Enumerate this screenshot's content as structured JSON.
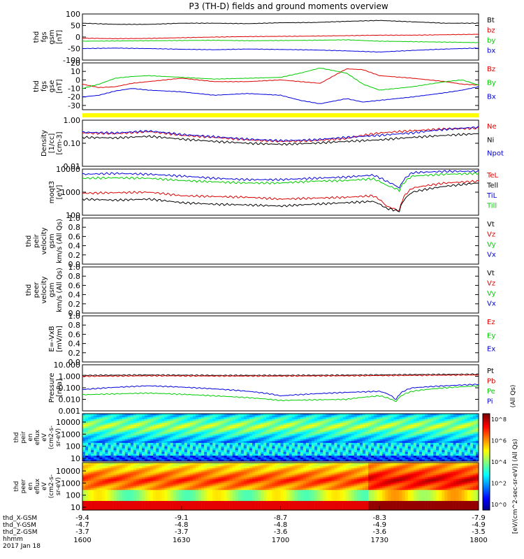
{
  "chart_data": {
    "type": "line",
    "title": "P3 (TH-D) fields and ground moments overview",
    "date_label": "2017 Jan 18",
    "x_time": {
      "label": "hhmm",
      "ticks": [
        "1600",
        "1630",
        "1700",
        "1730",
        "1800"
      ],
      "range": [
        0,
        120
      ]
    },
    "x_gsm": [
      {
        "label": "thd_X-GSM",
        "values": [
          "-9.4",
          "-9.1",
          "-8.7",
          "-8.3",
          "-7.9"
        ]
      },
      {
        "label": "thd_Y-GSM",
        "values": [
          "-4.7",
          "-4.8",
          "-4.8",
          "-4.9",
          "-4.9"
        ]
      },
      {
        "label": "thd_Z-GSM",
        "values": [
          "-3.7",
          "-3.7",
          "-3.6",
          "-3.6",
          "-3.5"
        ]
      }
    ],
    "panels": [
      {
        "id": "fgs_gsm",
        "ylabel": [
          "thd",
          "fgs",
          "gsm",
          "[nT]"
        ],
        "scale": "linear",
        "ylim": [
          -100,
          100
        ],
        "ticks": [
          "100",
          "50",
          "0",
          "-50",
          "-100"
        ],
        "series": [
          {
            "name": "Bt",
            "color": "#000000",
            "x": [
              0,
              10,
              20,
              30,
              40,
              50,
              60,
              70,
              80,
              90,
              100,
              110,
              120
            ],
            "values": [
              60,
              55,
              55,
              60,
              60,
              58,
              62,
              63,
              68,
              72,
              66,
              60,
              60
            ]
          },
          {
            "name": "bz",
            "color": "#dd0000",
            "x": [
              0,
              10,
              20,
              30,
              40,
              50,
              60,
              70,
              80,
              90,
              100,
              110,
              120
            ],
            "values": [
              -5,
              -7,
              -6,
              -3,
              0,
              2,
              3,
              4,
              6,
              8,
              8,
              10,
              12
            ]
          },
          {
            "name": "by",
            "color": "#00cc00",
            "x": [
              0,
              10,
              20,
              30,
              40,
              50,
              60,
              70,
              80,
              90,
              100,
              110,
              120
            ],
            "values": [
              -18,
              -17,
              -16,
              -15,
              -14,
              -16,
              -15,
              -14,
              -12,
              -18,
              -20,
              -22,
              -24
            ]
          },
          {
            "name": "bx",
            "color": "#0000dd",
            "x": [
              0,
              10,
              20,
              30,
              40,
              50,
              60,
              70,
              80,
              90,
              100,
              110,
              120
            ],
            "values": [
              -50,
              -48,
              -50,
              -53,
              -55,
              -52,
              -54,
              -56,
              -60,
              -65,
              -58,
              -52,
              -48
            ]
          }
        ]
      },
      {
        "id": "fgs_gse",
        "ylabel": [
          "thd",
          "fgs",
          "gse",
          "[nT]"
        ],
        "scale": "linear",
        "ylim": [
          -35,
          20
        ],
        "ticks": [
          "20",
          "10",
          "0",
          "-10",
          "-20",
          "-30"
        ],
        "series": [
          {
            "name": "Bz",
            "color": "#dd0000",
            "x": [
              0,
              5,
              10,
              15,
              20,
              30,
              40,
              50,
              60,
              66,
              72,
              80,
              85,
              90,
              100,
              110,
              115,
              120
            ],
            "values": [
              -5,
              -9,
              -8,
              -4,
              -2,
              2,
              -2,
              -2,
              0,
              -2,
              -4,
              13,
              12,
              5,
              2,
              -2,
              -5,
              -6
            ]
          },
          {
            "name": "By",
            "color": "#00cc00",
            "x": [
              0,
              5,
              10,
              15,
              20,
              30,
              40,
              50,
              60,
              66,
              72,
              80,
              85,
              90,
              100,
              110,
              115,
              120
            ],
            "values": [
              -10,
              -5,
              2,
              4,
              5,
              3,
              1,
              2,
              3,
              8,
              14,
              8,
              -5,
              -12,
              -8,
              -2,
              0,
              -6
            ]
          },
          {
            "name": "Bx",
            "color": "#0000dd",
            "x": [
              0,
              5,
              10,
              15,
              20,
              30,
              40,
              50,
              60,
              66,
              72,
              80,
              85,
              90,
              100,
              110,
              115,
              120
            ],
            "values": [
              -20,
              -18,
              -13,
              -10,
              -12,
              -14,
              -18,
              -16,
              -18,
              -24,
              -28,
              -22,
              -26,
              -24,
              -20,
              -15,
              -12,
              -8
            ]
          }
        ]
      },
      {
        "id": "density",
        "ylabel": [
          "Density",
          "[1/cc]",
          "[cm-3]"
        ],
        "scale": "log",
        "ylim": [
          0.01,
          1.0
        ],
        "ticks": [
          "1.00",
          "0.10",
          "0.01"
        ],
        "series": [
          {
            "name": "Ne",
            "color": "#dd0000",
            "x": [
              0,
              10,
              20,
              30,
              40,
              50,
              60,
              70,
              80,
              90,
              100,
              110,
              120
            ],
            "values": [
              0.28,
              0.26,
              0.32,
              0.22,
              0.18,
              0.14,
              0.12,
              0.13,
              0.16,
              0.28,
              0.35,
              0.42,
              0.45
            ]
          },
          {
            "name": "Ni",
            "color": "#000000",
            "x": [
              0,
              10,
              20,
              30,
              40,
              50,
              60,
              70,
              80,
              90,
              100,
              110,
              120
            ],
            "values": [
              0.18,
              0.17,
              0.2,
              0.15,
              0.12,
              0.1,
              0.09,
              0.1,
              0.12,
              0.14,
              0.18,
              0.22,
              0.26
            ]
          },
          {
            "name": "Npot",
            "color": "#0000dd",
            "x": [
              0,
              10,
              20,
              30,
              40,
              50,
              60,
              70,
              80,
              90,
              100,
              110,
              120
            ],
            "values": [
              0.3,
              0.28,
              0.34,
              0.24,
              0.19,
              0.15,
              0.13,
              0.14,
              0.18,
              0.22,
              0.28,
              0.4,
              0.5
            ]
          }
        ]
      },
      {
        "id": "moments",
        "ylabel": [
          "moqt3",
          "[eV]"
        ],
        "scale": "log",
        "ylim": [
          100,
          10000
        ],
        "ticks": [
          "10000",
          "1000",
          "100"
        ],
        "series": [
          {
            "name": "TeL",
            "color": "#dd0000",
            "x": [
              0,
              10,
              20,
              30,
              40,
              50,
              60,
              70,
              80,
              88,
              92,
              96,
              100,
              110,
              120
            ],
            "values": [
              900,
              950,
              1000,
              700,
              650,
              600,
              500,
              550,
              600,
              700,
              250,
              150,
              1500,
              2500,
              3000
            ]
          },
          {
            "name": "Tell",
            "color": "#000000",
            "x": [
              0,
              10,
              20,
              30,
              40,
              50,
              60,
              70,
              80,
              88,
              92,
              96,
              100,
              110,
              120
            ],
            "values": [
              500,
              450,
              500,
              350,
              300,
              280,
              250,
              300,
              350,
              400,
              200,
              150,
              1000,
              1800,
              2500
            ]
          },
          {
            "name": "TiL",
            "color": "#0000dd",
            "x": [
              0,
              10,
              20,
              30,
              40,
              50,
              60,
              70,
              80,
              88,
              92,
              96,
              100,
              110,
              120
            ],
            "values": [
              6000,
              6500,
              6000,
              5000,
              4000,
              3500,
              3500,
              4000,
              4500,
              5500,
              3000,
              1500,
              7000,
              8000,
              8000
            ]
          },
          {
            "name": "Till",
            "color": "#00cc00",
            "x": [
              0,
              10,
              20,
              30,
              40,
              50,
              60,
              70,
              80,
              88,
              92,
              96,
              100,
              110,
              120
            ],
            "values": [
              4000,
              4200,
              4000,
              3200,
              2800,
              2500,
              2500,
              3000,
              3200,
              3800,
              2000,
              1200,
              5000,
              6000,
              6500
            ]
          }
        ]
      },
      {
        "id": "peir_velocity",
        "ylabel": [
          "thd",
          "peir",
          "velocity",
          "gsm",
          "km/s (All Qs)"
        ],
        "scale": "linear",
        "ylim": [
          0,
          1.0
        ],
        "ticks": [
          "1.0",
          "0.8",
          "0.6",
          "0.4",
          "0.2",
          "0.0"
        ],
        "series": [
          {
            "name": "Vt",
            "color": "#000000",
            "x": [],
            "values": []
          },
          {
            "name": "Vz",
            "color": "#dd0000",
            "x": [],
            "values": []
          },
          {
            "name": "Vy",
            "color": "#00cc00",
            "x": [],
            "values": []
          },
          {
            "name": "Vx",
            "color": "#0000dd",
            "x": [],
            "values": []
          }
        ]
      },
      {
        "id": "peer_velocity",
        "ylabel": [
          "thd",
          "peer",
          "velocity",
          "gsm",
          "km/s (All Qs)"
        ],
        "scale": "linear",
        "ylim": [
          0,
          1.0
        ],
        "ticks": [
          "1.0",
          "0.8",
          "0.6",
          "0.4",
          "0.2",
          "0.0"
        ],
        "series": [
          {
            "name": "Vt",
            "color": "#000000",
            "x": [],
            "values": []
          },
          {
            "name": "Vz",
            "color": "#dd0000",
            "x": [],
            "values": []
          },
          {
            "name": "Vy",
            "color": "#00cc00",
            "x": [],
            "values": []
          },
          {
            "name": "Vx",
            "color": "#0000dd",
            "x": [],
            "values": []
          }
        ]
      },
      {
        "id": "efield",
        "ylabel": [
          "E=-VxB",
          "[mV/m]"
        ],
        "scale": "linear",
        "ylim": [
          0,
          1.0
        ],
        "ticks": [
          "1.0",
          "0.8",
          "0.6",
          "0.4",
          "0.2",
          "0.0"
        ],
        "series": [
          {
            "name": "Ez",
            "color": "#dd0000",
            "x": [],
            "values": []
          },
          {
            "name": "Ey",
            "color": "#00cc00",
            "x": [],
            "values": []
          },
          {
            "name": "Ex",
            "color": "#0000dd",
            "x": [],
            "values": []
          }
        ]
      },
      {
        "id": "pressure",
        "ylabel": [
          "Pressure",
          "[nPa]"
        ],
        "scale": "log",
        "ylim": [
          0.001,
          10
        ],
        "ticks": [
          "10.000",
          "1.000",
          "0.100",
          "0.010",
          "0.001"
        ],
        "right_label": "(All Qs)",
        "series": [
          {
            "name": "Pt",
            "color": "#000000",
            "x": [
              0,
              20,
              40,
              60,
              80,
              100,
              120
            ],
            "values": [
              1.2,
              1.3,
              1.2,
              1.2,
              1.25,
              1.4,
              1.5
            ]
          },
          {
            "name": "Pb",
            "color": "#dd0000",
            "x": [
              0,
              20,
              40,
              60,
              80,
              100,
              120
            ],
            "values": [
              1.0,
              1.1,
              1.05,
              1.05,
              1.1,
              1.2,
              1.3
            ]
          },
          {
            "name": "Pe",
            "color": "#00cc00",
            "x": [
              0,
              20,
              40,
              60,
              80,
              90,
              95,
              100,
              110,
              120
            ],
            "values": [
              0.025,
              0.035,
              0.02,
              0.008,
              0.01,
              0.02,
              0.006,
              0.05,
              0.1,
              0.15
            ]
          },
          {
            "name": "Pi",
            "color": "#0000dd",
            "x": [
              0,
              20,
              40,
              60,
              80,
              90,
              95,
              100,
              110,
              120
            ],
            "values": [
              0.07,
              0.15,
              0.08,
              0.02,
              0.04,
              0.05,
              0.008,
              0.1,
              0.15,
              0.2
            ]
          }
        ]
      }
    ],
    "spectrograms": [
      {
        "id": "peir_spectrogram",
        "ylabel": [
          "thd",
          "peir",
          "en",
          "eflux",
          "eV",
          "(cm2-s-",
          "sr-eV)"
        ],
        "yticks": [
          "10000",
          "1000",
          "100",
          "10"
        ]
      },
      {
        "id": "peer_spectrogram",
        "ylabel": [
          "thd",
          "peer",
          "en",
          "eflux",
          "eV",
          "(cm2-s-",
          "sr-eV)"
        ],
        "yticks": [
          "10000",
          "1000",
          "100",
          "10"
        ]
      }
    ],
    "colorbar": {
      "label": "[eV/(cm^2-sec-sr-eV)] (All Qs)",
      "ticks": [
        "10^8",
        "10^6",
        "10^4",
        "10^2",
        "10^0"
      ]
    }
  },
  "colors": {
    "black": "#000000",
    "red": "#dd0000",
    "green": "#00cc00",
    "blue": "#0000dd",
    "yellow_bar": "#ffff00"
  }
}
